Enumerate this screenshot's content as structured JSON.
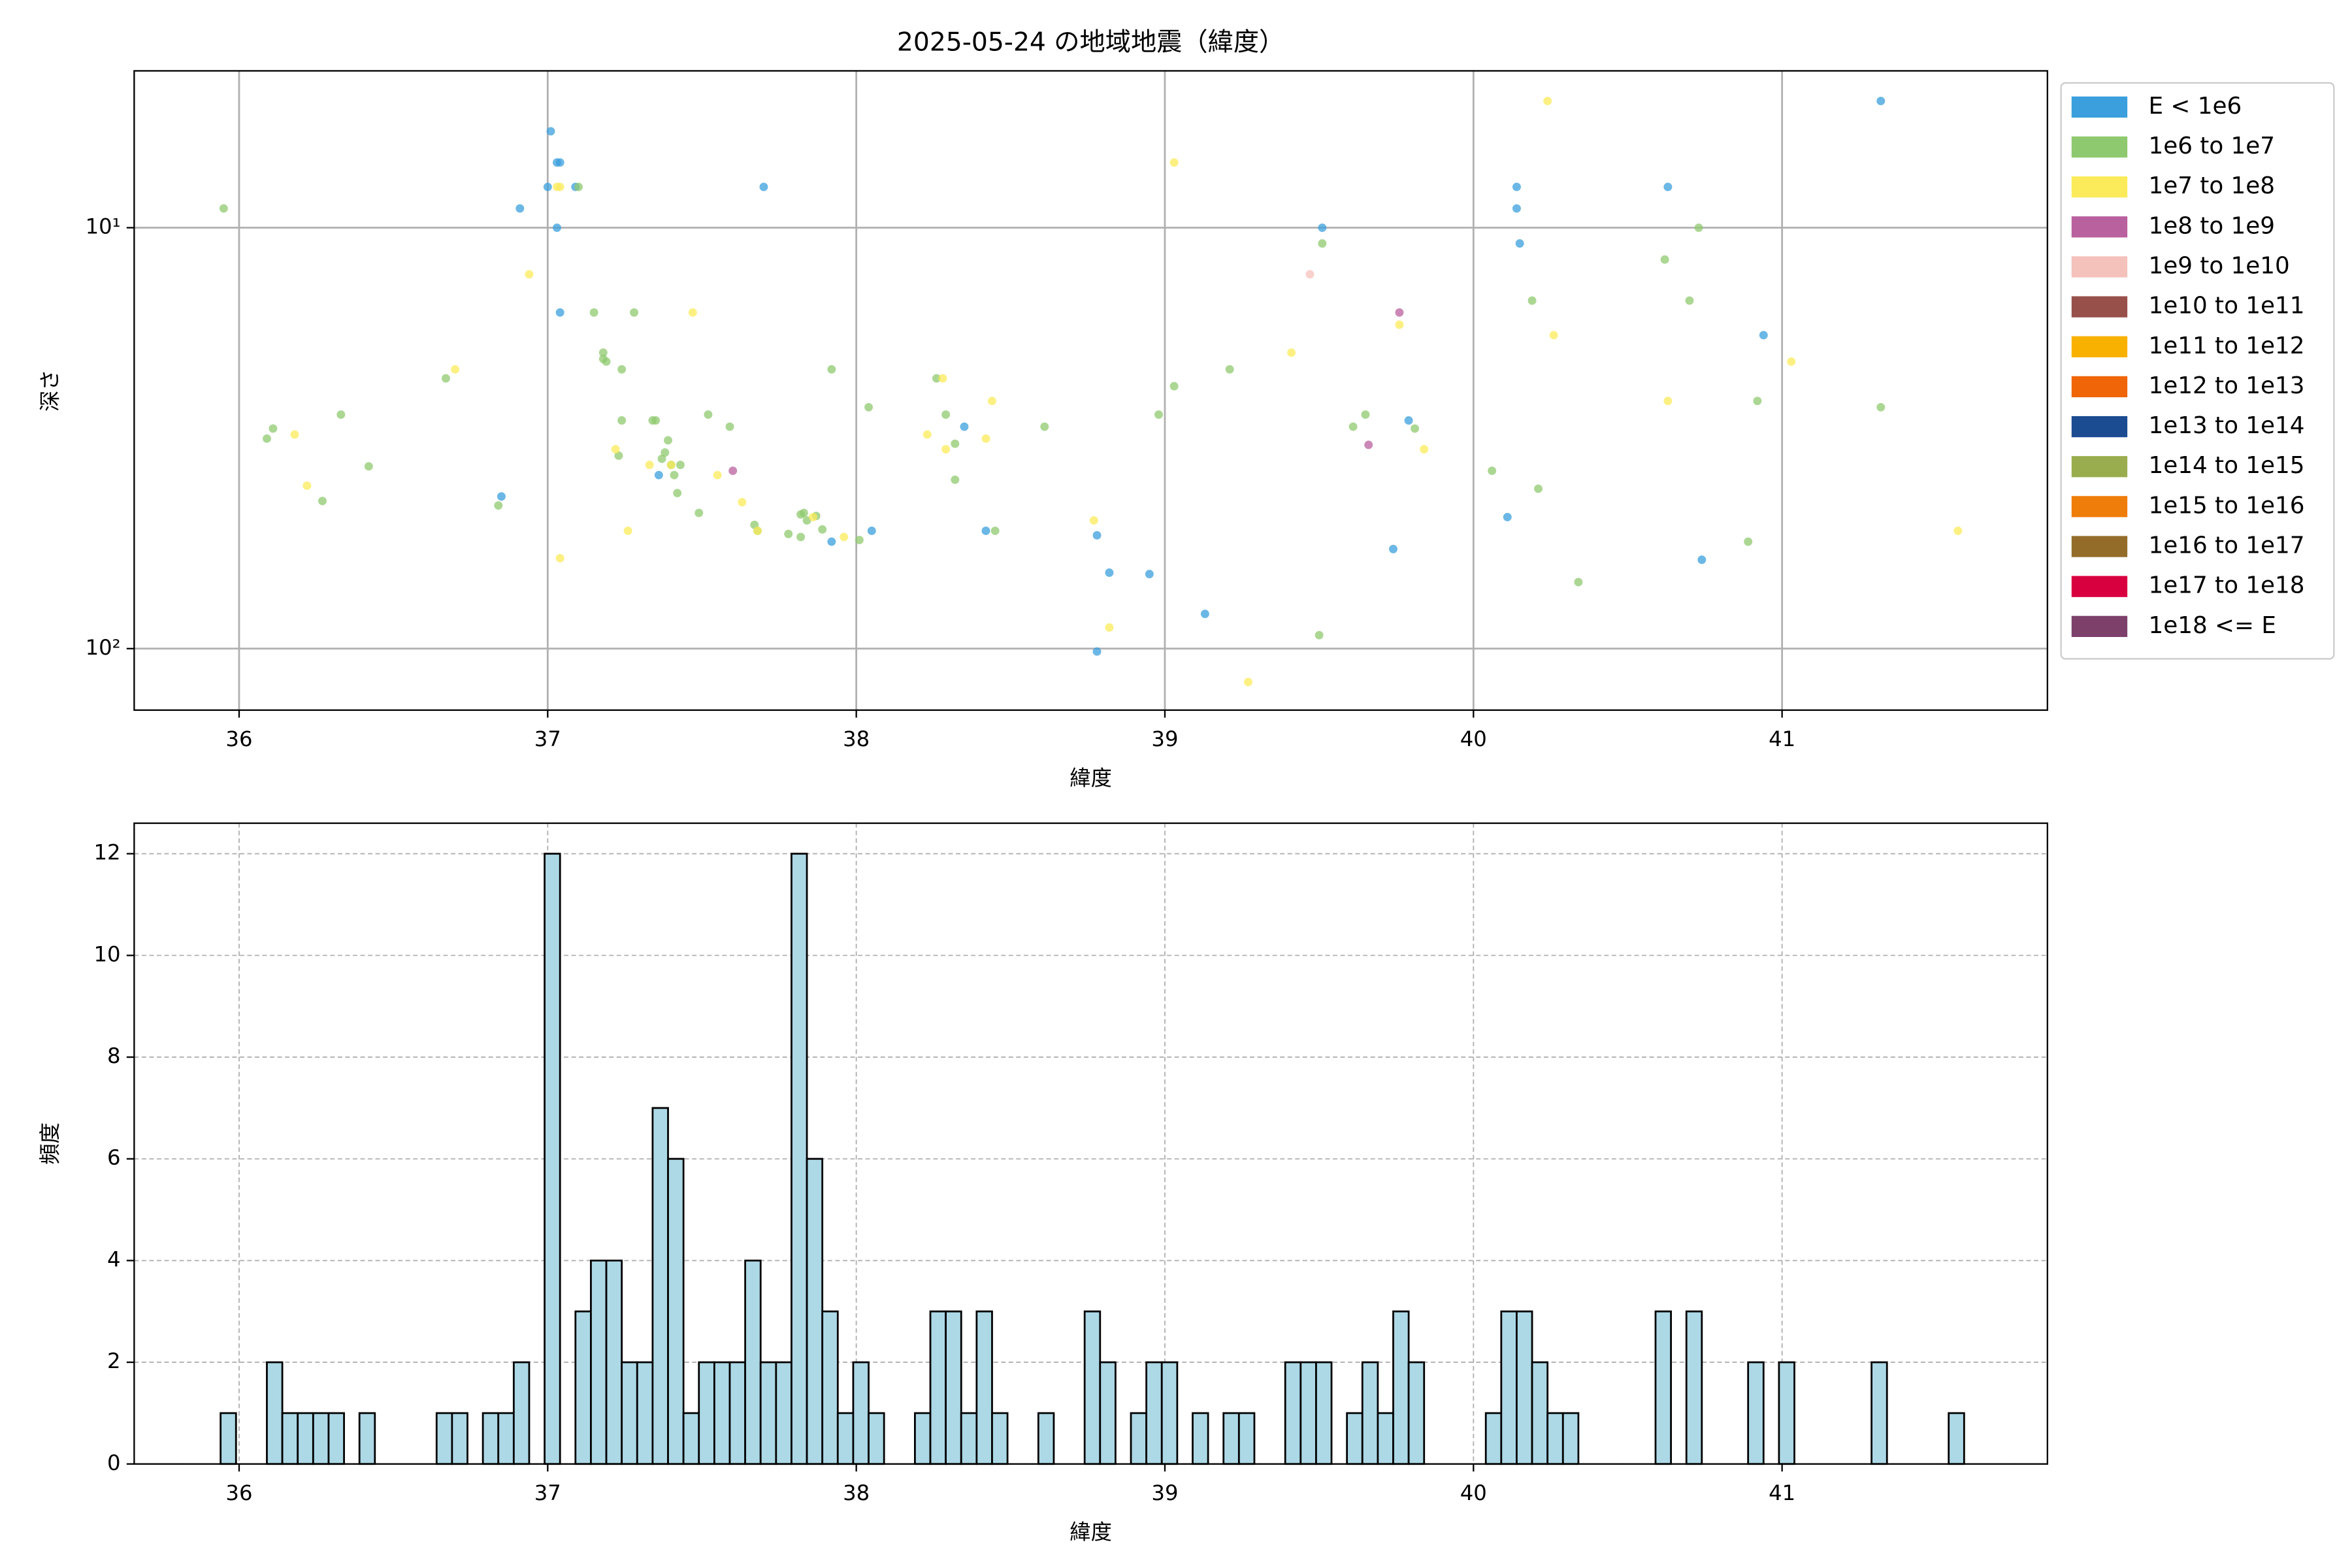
{
  "chart_data": [
    {
      "type": "scatter",
      "title": "2025-05-24 の地域地震（緯度）",
      "x_label": "緯度",
      "y_label": "深さ",
      "xlim": [
        35.66,
        41.86
      ],
      "xticks": [
        36,
        37,
        38,
        39,
        40,
        41
      ],
      "ylim": [
        4.24,
        140
      ],
      "y_scale": "log",
      "y_inverted": true,
      "yticks": [
        {
          "value": 10,
          "label": "10¹"
        },
        {
          "value": 100,
          "label": "10²"
        }
      ],
      "grid": true,
      "grid_style": "solid",
      "legend": "outside-upper-right",
      "series": [
        {
          "name": "E < 1e6",
          "color": "#3a9fdc",
          "x": [
            37.01,
            37.03,
            37.04,
            37.0,
            36.91,
            37.03,
            37.04,
            36.85,
            37.36,
            37.7,
            38.35,
            38.42,
            37.92,
            38.05,
            38.78,
            38.82,
            38.95,
            39.13,
            38.78,
            39.51,
            39.74,
            39.79,
            40.11,
            40.14,
            40.14,
            40.15,
            40.63,
            40.74,
            40.94,
            41.32,
            37.09
          ],
          "y": [
            5.9,
            7.0,
            7.0,
            8.0,
            9.0,
            10,
            15.9,
            43.5,
            38.7,
            8.0,
            29.7,
            52.5,
            55.7,
            52.5,
            53.8,
            66.0,
            66.5,
            82.7,
            101.6,
            10,
            58.0,
            28.7,
            48.7,
            8.0,
            9.0,
            10.9,
            8.0,
            61.5,
            18.0,
            5.0,
            8.0
          ]
        },
        {
          "name": "1e6 to 1e7",
          "color": "#8fc96f",
          "x": [
            35.95,
            36.09,
            36.11,
            36.27,
            36.33,
            36.42,
            36.67,
            36.84,
            37.1,
            37.15,
            37.18,
            37.19,
            37.18,
            37.24,
            37.23,
            37.24,
            37.28,
            37.34,
            37.35,
            37.37,
            37.38,
            37.39,
            37.4,
            37.41,
            37.42,
            37.43,
            37.49,
            37.52,
            37.59,
            37.67,
            37.68,
            37.78,
            37.82,
            37.82,
            37.83,
            37.84,
            37.87,
            37.89,
            37.92,
            38.01,
            38.04,
            38.26,
            38.29,
            38.32,
            38.32,
            38.45,
            38.61,
            38.98,
            39.03,
            39.21,
            39.5,
            39.51,
            39.61,
            39.65,
            39.81,
            40.06,
            40.19,
            40.21,
            40.34,
            40.62,
            40.7,
            40.73,
            40.89,
            40.92,
            41.32
          ],
          "y": [
            9.0,
            31.7,
            30.0,
            44.6,
            27.8,
            36.9,
            22.8,
            45.7,
            8.0,
            15.9,
            19.8,
            20.8,
            20.5,
            21.7,
            34.8,
            28.7,
            15.9,
            28.7,
            28.7,
            35.4,
            34.2,
            32.0,
            36.6,
            38.7,
            42.7,
            36.6,
            47.6,
            27.8,
            29.7,
            50.8,
            52.5,
            53.4,
            48.0,
            54.3,
            47.6,
            49.6,
            48.4,
            52.1,
            21.7,
            55.2,
            26.7,
            22.8,
            27.8,
            32.6,
            39.7,
            52.5,
            29.7,
            27.8,
            23.8,
            21.7,
            92.9,
            10.9,
            29.7,
            27.8,
            30.0,
            37.8,
            14.9,
            41.7,
            69.5,
            11.9,
            14.9,
            10,
            55.7,
            25.8,
            26.7
          ]
        },
        {
          "name": "1e7 to 1e8",
          "color": "#fbeb5a",
          "x": [
            37.03,
            37.04,
            36.94,
            36.7,
            36.18,
            36.22,
            37.22,
            37.26,
            37.33,
            37.4,
            37.47,
            37.55,
            37.63,
            37.68,
            37.86,
            37.96,
            38.23,
            38.28,
            38.29,
            38.42,
            38.44,
            38.77,
            38.82,
            39.03,
            39.27,
            39.41,
            39.76,
            39.84,
            40.24,
            40.26,
            40.63,
            41.03,
            37.04,
            41.57
          ],
          "y": [
            8.0,
            8.0,
            12.9,
            21.7,
            31.0,
            41.0,
            33.6,
            52.5,
            36.6,
            36.6,
            15.9,
            38.7,
            44.9,
            52.5,
            48.7,
            54.3,
            31.0,
            22.8,
            33.6,
            31.7,
            25.8,
            49.6,
            89.1,
            7.0,
            120,
            19.8,
            17.0,
            33.6,
            5.0,
            18.0,
            25.8,
            20.8,
            61.0,
            52.5
          ]
        },
        {
          "name": "1e8 to 1e9",
          "color": "#b9609f",
          "x": [
            37.6,
            39.66,
            39.76
          ],
          "y": [
            37.8,
            32.8,
            15.9
          ]
        },
        {
          "name": "1e9 to 1e10",
          "color": "#f5c1bb",
          "x": [
            39.47
          ],
          "y": [
            12.9
          ]
        },
        {
          "name": "1e10 to 1e11",
          "color": "#98504a",
          "x": [],
          "y": []
        },
        {
          "name": "1e11 to 1e12",
          "color": "#f9b100",
          "x": [],
          "y": []
        },
        {
          "name": "1e12 to 1e13",
          "color": "#ef6508",
          "x": [],
          "y": []
        },
        {
          "name": "1e13 to 1e14",
          "color": "#1b4b91",
          "x": [],
          "y": []
        },
        {
          "name": "1e14 to 1e15",
          "color": "#9aad4e",
          "x": [],
          "y": []
        },
        {
          "name": "1e15 to 1e16",
          "color": "#ef7d0a",
          "x": [],
          "y": []
        },
        {
          "name": "1e16 to 1e17",
          "color": "#946c2a",
          "x": [],
          "y": []
        },
        {
          "name": "1e17 to 1e18",
          "color": "#d90040",
          "x": [],
          "y": []
        },
        {
          "name": "1e18 <= E",
          "color": "#7c406b",
          "x": [],
          "y": []
        }
      ]
    },
    {
      "type": "histogram",
      "x_label": "緯度",
      "y_label": "頻度",
      "color": "#add8e6",
      "edge_color": "#000000",
      "xlim": [
        35.66,
        41.86
      ],
      "xticks": [
        36,
        37,
        38,
        39,
        40,
        41
      ],
      "ylim": [
        0,
        12.6
      ],
      "yticks": [
        0,
        2,
        4,
        6,
        8,
        10,
        12
      ],
      "grid": true,
      "grid_style": "dashed",
      "bins": [
        35.94,
        35.99,
        36.04,
        36.09,
        36.14,
        36.19,
        36.24,
        36.29,
        36.34,
        36.39,
        36.44,
        36.49,
        36.54,
        36.59,
        36.64,
        36.69,
        36.74,
        36.79,
        36.84,
        36.89,
        36.94,
        36.99,
        37.04,
        37.09,
        37.14,
        37.19,
        37.24,
        37.29,
        37.34,
        37.39,
        37.44,
        37.49,
        37.54,
        37.59,
        37.64,
        37.69,
        37.74,
        37.79,
        37.84,
        37.89,
        37.94,
        37.99,
        38.04,
        38.09,
        38.14,
        38.19,
        38.24,
        38.29,
        38.34,
        38.39,
        38.44,
        38.49,
        38.54,
        38.59,
        38.64,
        38.69,
        38.74,
        38.79,
        38.84,
        38.89,
        38.94,
        38.99,
        39.04,
        39.09,
        39.14,
        39.19,
        39.24,
        39.29,
        39.34,
        39.39,
        39.44,
        39.49,
        39.54,
        39.59,
        39.64,
        39.69,
        39.74,
        39.79,
        39.84,
        39.89,
        39.94,
        39.99,
        40.04,
        40.09,
        40.14,
        40.19,
        40.24,
        40.29,
        40.34,
        40.39,
        40.44,
        40.49,
        40.54,
        40.59,
        40.64,
        40.69,
        40.74,
        40.79,
        40.84,
        40.89,
        40.94,
        40.99,
        41.04,
        41.09,
        41.14,
        41.19,
        41.24,
        41.29,
        41.34,
        41.39,
        41.44,
        41.49,
        41.54,
        41.59
      ],
      "values": [
        1,
        0,
        0,
        2,
        1,
        1,
        1,
        1,
        0,
        1,
        0,
        0,
        0,
        0,
        1,
        1,
        0,
        1,
        1,
        2,
        0,
        12,
        0,
        3,
        4,
        4,
        2,
        2,
        7,
        6,
        1,
        2,
        2,
        2,
        4,
        2,
        2,
        12,
        6,
        3,
        1,
        2,
        1,
        0,
        0,
        1,
        3,
        3,
        1,
        3,
        1,
        0,
        0,
        1,
        0,
        0,
        3,
        2,
        0,
        1,
        2,
        2,
        0,
        1,
        0,
        1,
        1,
        0,
        0,
        2,
        2,
        2,
        0,
        1,
        2,
        1,
        3,
        2,
        0,
        0,
        0,
        0,
        1,
        3,
        3,
        2,
        1,
        1,
        0,
        0,
        0,
        0,
        0,
        3,
        0,
        3,
        0,
        0,
        0,
        2,
        0,
        2,
        0,
        0,
        0,
        0,
        0,
        2,
        0,
        0,
        0,
        0,
        1
      ]
    }
  ]
}
